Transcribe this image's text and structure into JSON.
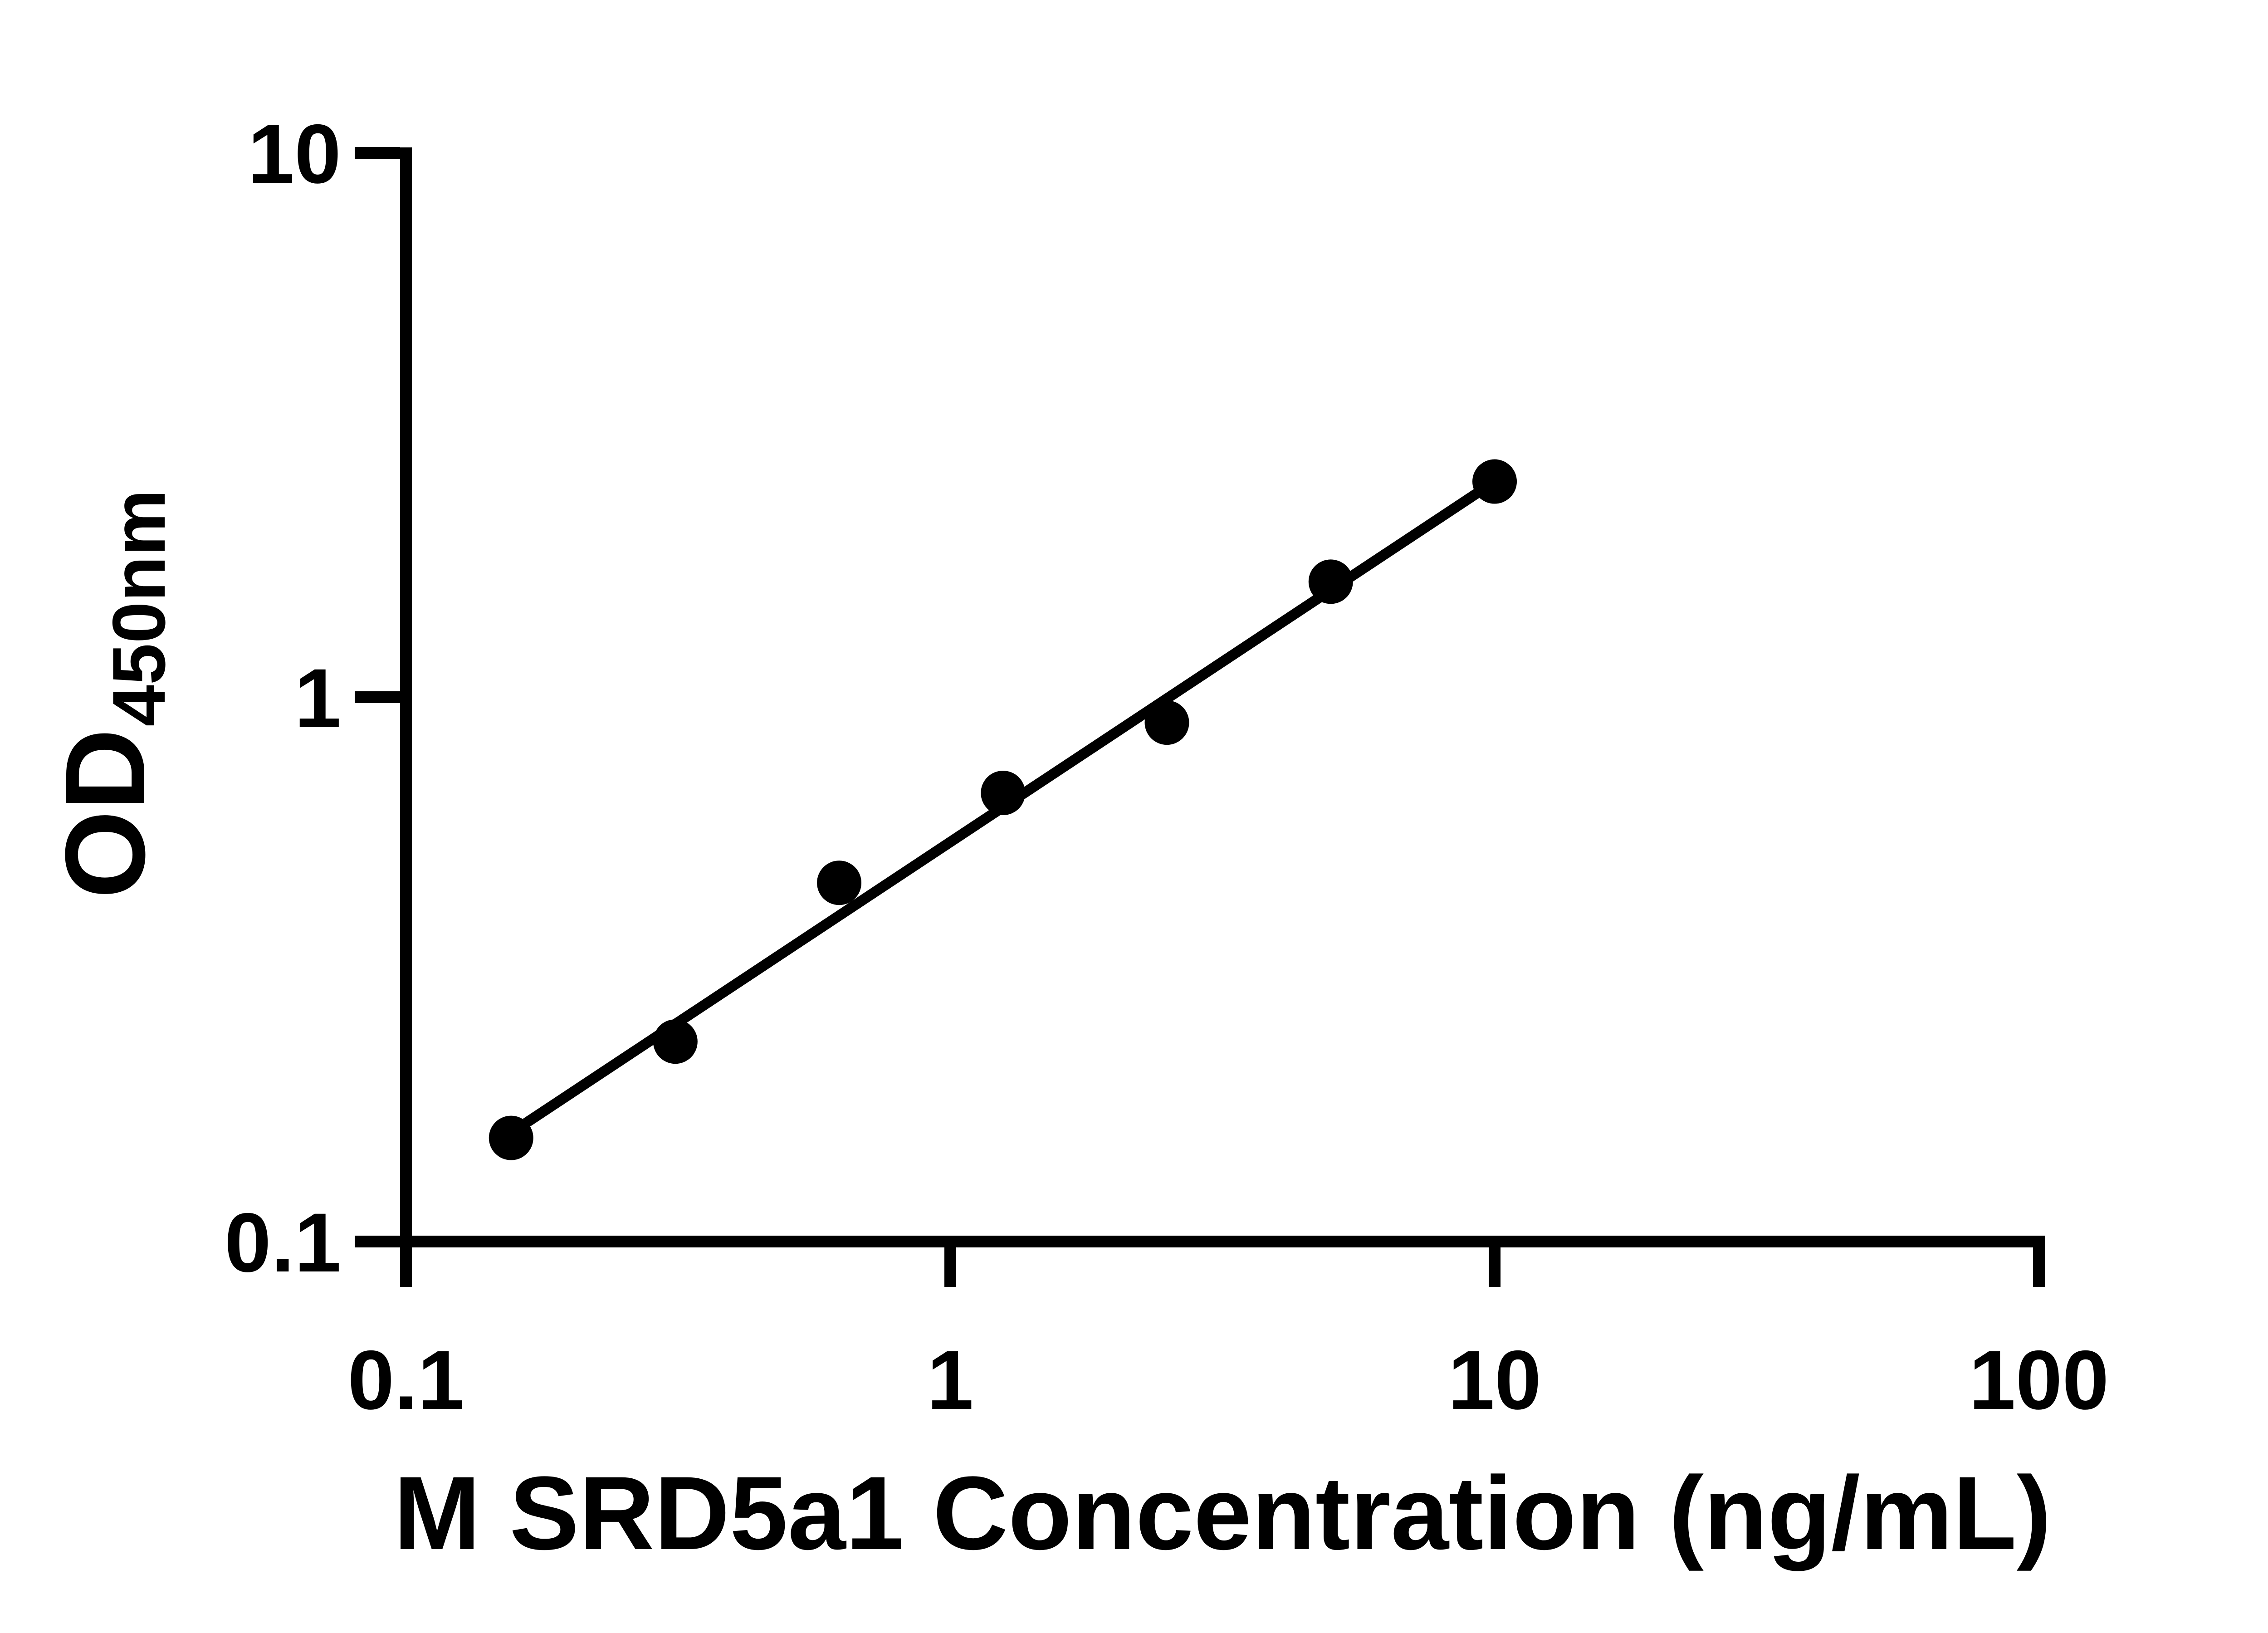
{
  "chart_data": {
    "type": "scatter",
    "title": "",
    "xlabel": "M SRD5a1 Concentration (ng/mL)",
    "ylabel_main": "OD",
    "ylabel_sub": "450nm",
    "x_scale": "log10",
    "y_scale": "log10",
    "xlim": [
      0.1,
      100
    ],
    "ylim": [
      0.1,
      10
    ],
    "x_ticks": [
      "0.1",
      "1",
      "10",
      "100"
    ],
    "y_ticks": [
      "10",
      "1",
      "0.1"
    ],
    "grid": "off",
    "legend": "none",
    "x": [
      0.156,
      0.3125,
      0.625,
      1.25,
      2.5,
      5,
      10
    ],
    "y": [
      0.155,
      0.233,
      0.456,
      0.667,
      0.898,
      1.63,
      2.49
    ],
    "trendline": {
      "x1": 0.166,
      "y1": 0.165,
      "x2": 10,
      "y2": 2.49
    },
    "marker_color": "#000000",
    "line_color": "#000000",
    "axis_color": "#000000",
    "background_color": "#ffffff"
  }
}
